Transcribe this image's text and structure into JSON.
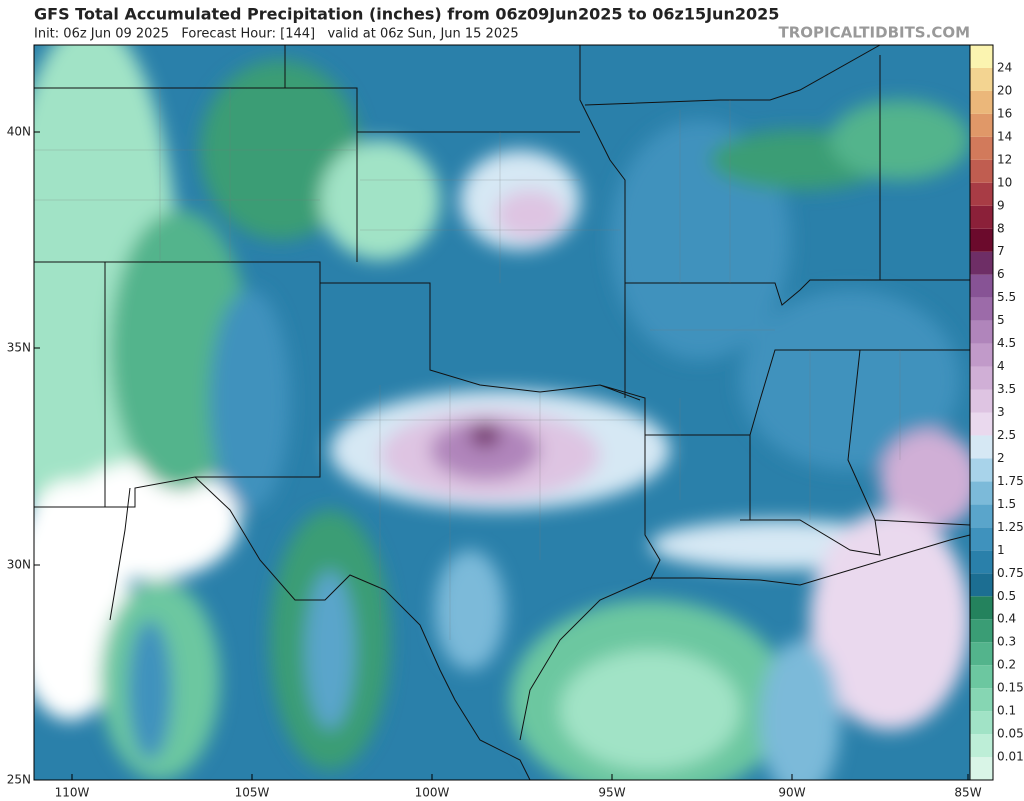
{
  "header": {
    "title": "GFS Total Accumulated Precipitation (inches) from 06z09Jun2025 to 06z15Jun2025",
    "subtitle": "Init: 06z Jun 09 2025   Forecast Hour: [144]   valid at 06z Sun, Jun 15 2025",
    "source": "TROPICALTIDBITS.COM"
  },
  "map": {
    "latitude_labels": [
      "40N",
      "35N",
      "30N",
      "25N"
    ],
    "longitude_labels": [
      "110W",
      "105W",
      "100W",
      "95W",
      "90W",
      "85W"
    ]
  },
  "colorbar": [
    {
      "label": "0.01",
      "color": "#d9f5e7"
    },
    {
      "label": "0.05",
      "color": "#bdeed7"
    },
    {
      "label": "0.1",
      "color": "#a1e3c6"
    },
    {
      "label": "0.15",
      "color": "#86d6b3"
    },
    {
      "label": "0.2",
      "color": "#6cc7a0"
    },
    {
      "label": "0.3",
      "color": "#53b48c"
    },
    {
      "label": "0.4",
      "color": "#3a9d75"
    },
    {
      "label": "0.5",
      "color": "#24825d"
    },
    {
      "label": "0.75",
      "color": "#1c6e92"
    },
    {
      "label": "1",
      "color": "#2a80aa"
    },
    {
      "label": "1.25",
      "color": "#3f92bd"
    },
    {
      "label": "1.5",
      "color": "#5aa5cb"
    },
    {
      "label": "1.75",
      "color": "#7cbad9"
    },
    {
      "label": "2",
      "color": "#a8d3ea"
    },
    {
      "label": "2.5",
      "color": "#d6e8f4"
    },
    {
      "label": "3",
      "color": "#ead9ee"
    },
    {
      "label": "3.5",
      "color": "#dec4e2"
    },
    {
      "label": "4",
      "color": "#d0afd6"
    },
    {
      "label": "4.5",
      "color": "#c19ac9"
    },
    {
      "label": "5",
      "color": "#b085bb"
    },
    {
      "label": "5.5",
      "color": "#9c6ba9"
    },
    {
      "label": "6",
      "color": "#875395"
    },
    {
      "label": "7",
      "color": "#6e2e66"
    },
    {
      "label": "8",
      "color": "#6b0a2c"
    },
    {
      "label": "9",
      "color": "#8b2039"
    },
    {
      "label": "10",
      "color": "#a83c45"
    },
    {
      "label": "12",
      "color": "#c05d50"
    },
    {
      "label": "14",
      "color": "#d27a5b"
    },
    {
      "label": "16",
      "color": "#e09868"
    },
    {
      "label": "20",
      "color": "#ebb77a"
    },
    {
      "label": "24",
      "color": "#f3d491"
    },
    {
      "label": null,
      "color": "#fbf4b0"
    }
  ]
}
